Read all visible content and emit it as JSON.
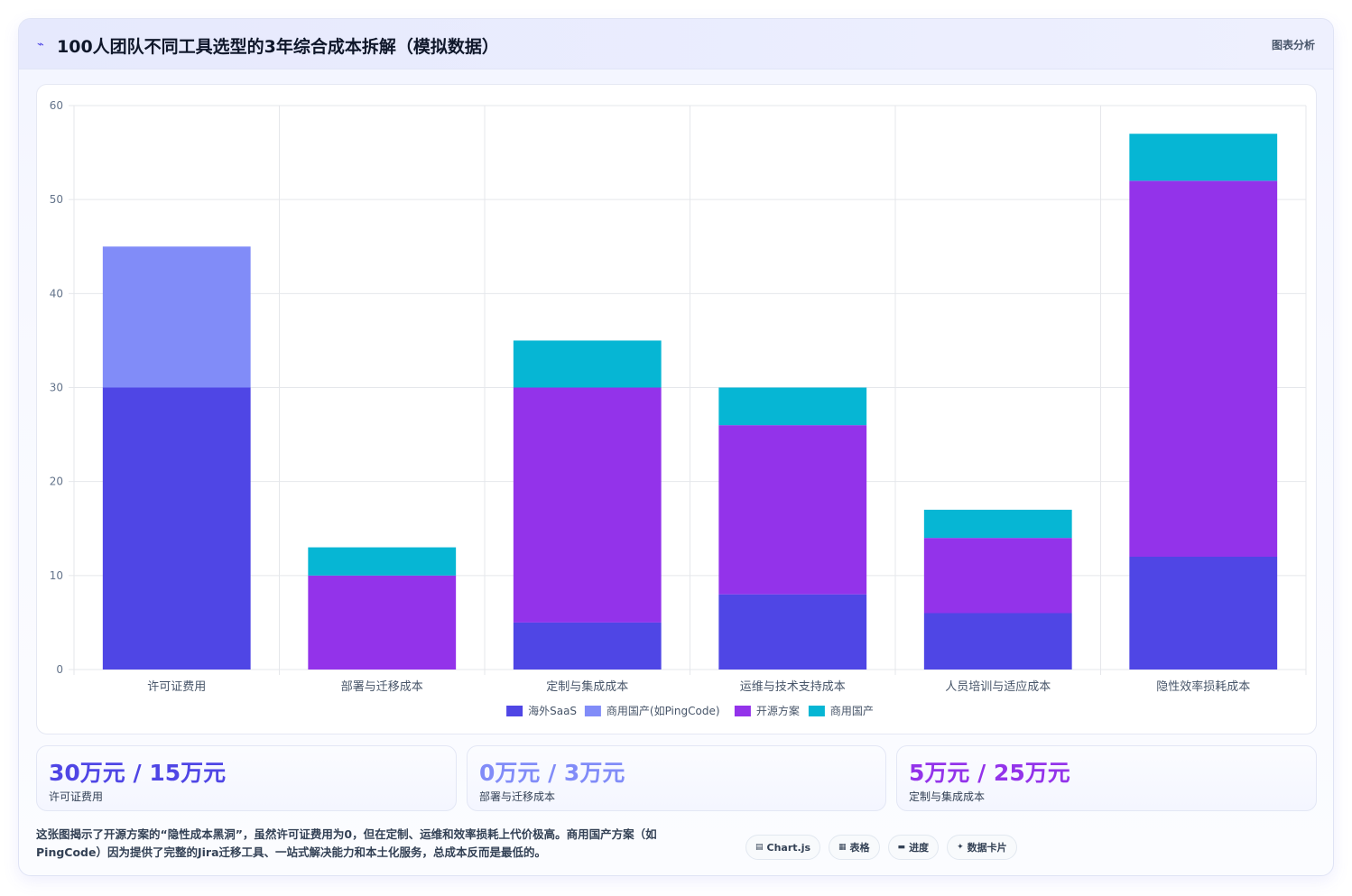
{
  "header": {
    "title": "100人团队不同工具选型的3年综合成本拆解（模拟数据）",
    "title_icon": "chart-line-icon",
    "analysis_label": "图表分析"
  },
  "chart_data": {
    "type": "bar",
    "stacked": true,
    "categories": [
      "许可证费用",
      "部署与迁移成本",
      "定制与集成成本",
      "运维与技术支持成本",
      "人员培训与适应成本",
      "隐性效率损耗成本"
    ],
    "series": [
      {
        "name": "海外SaaS",
        "color": "#4f46e5",
        "values": [
          30,
          0,
          5,
          8,
          6,
          12
        ]
      },
      {
        "name": "商用国产(如PingCode)",
        "color": "#818cf8",
        "values": [
          15,
          0,
          0,
          0,
          0,
          0
        ]
      },
      {
        "name": "开源方案",
        "color": "#9333ea",
        "values": [
          0,
          10,
          25,
          18,
          8,
          40
        ]
      },
      {
        "name": "商用国产",
        "color": "#06b6d4",
        "values": [
          0,
          3,
          5,
          4,
          3,
          5
        ]
      }
    ],
    "ylim": [
      0,
      60
    ],
    "yticks": [
      0,
      10,
      20,
      30,
      40,
      50,
      60
    ],
    "grid": true,
    "legend": "bottom"
  },
  "stats": [
    {
      "value": "30万元 / 15万元",
      "label": "许可证费用",
      "color": "#4f46e5"
    },
    {
      "value": "0万元 / 3万元",
      "label": "部署与迁移成本",
      "color": "#818cf8"
    },
    {
      "value": "5万元 / 25万元",
      "label": "定制与集成成本",
      "color": "#9333ea"
    }
  ],
  "note": "这张图揭示了开源方案的“隐性成本黑洞”，虽然许可证费用为0，但在定制、运维和效率损耗上代价极高。商用国产方案（如PingCode）因为提供了完整的Jira迁移工具、一站式解决能力和本土化服务，总成本反而是最低的。",
  "tags": [
    {
      "icon": "chart-icon",
      "glyph": "▤",
      "label": "Chart.js"
    },
    {
      "icon": "table-icon",
      "glyph": "▦",
      "label": "表格"
    },
    {
      "icon": "progress-icon",
      "glyph": "▬",
      "label": "进度"
    },
    {
      "icon": "sparkle-icon",
      "glyph": "✦",
      "label": "数据卡片"
    }
  ]
}
